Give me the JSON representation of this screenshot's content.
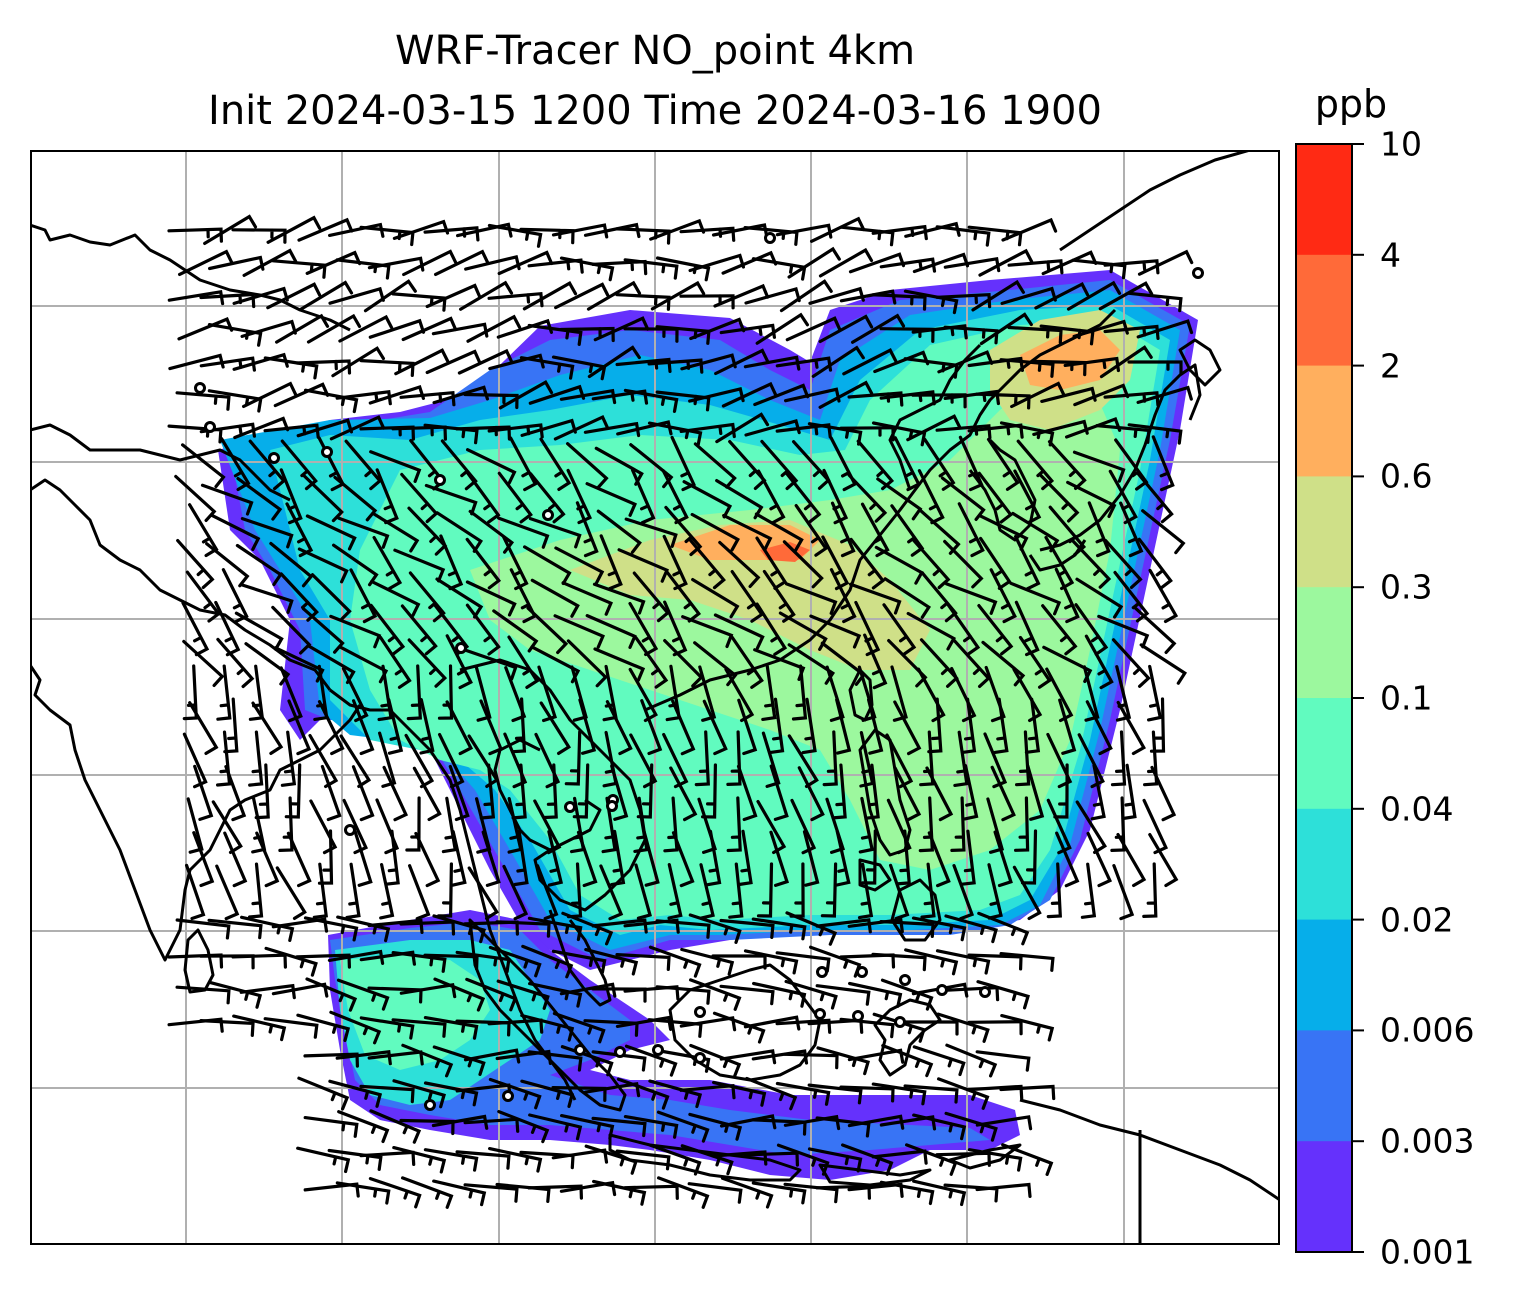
{
  "title": {
    "line1": "WRF-Tracer NO_point 4km",
    "line2": "Init 2024-03-15 1200 Time 2024-03-16 1900"
  },
  "colorbar": {
    "unit": "ppb",
    "levels": [
      "10",
      "4",
      "2",
      "0.6",
      "0.3",
      "0.1",
      "0.04",
      "0.02",
      "0.006",
      "0.003",
      "0.001"
    ],
    "colors": [
      "#ff2a14",
      "#ff6a39",
      "#ffaf5e",
      "#cfe088",
      "#9cf89e",
      "#61fbbf",
      "#2de0d9",
      "#06aeea",
      "#3874f5",
      "#6531fc"
    ]
  },
  "map": {
    "fill_colors": {
      "c0001": "#6531fc",
      "c0003": "#3874f5",
      "c0006": "#06aeea",
      "c002": "#2de0d9",
      "c004": "#61fbbf",
      "c01": "#9cf89e",
      "c03": "#cfe088",
      "c06": "#ffaf5e",
      "c2": "#ff6a39"
    },
    "gridlines": true,
    "coastlines": true,
    "wind_barbs": true
  }
}
